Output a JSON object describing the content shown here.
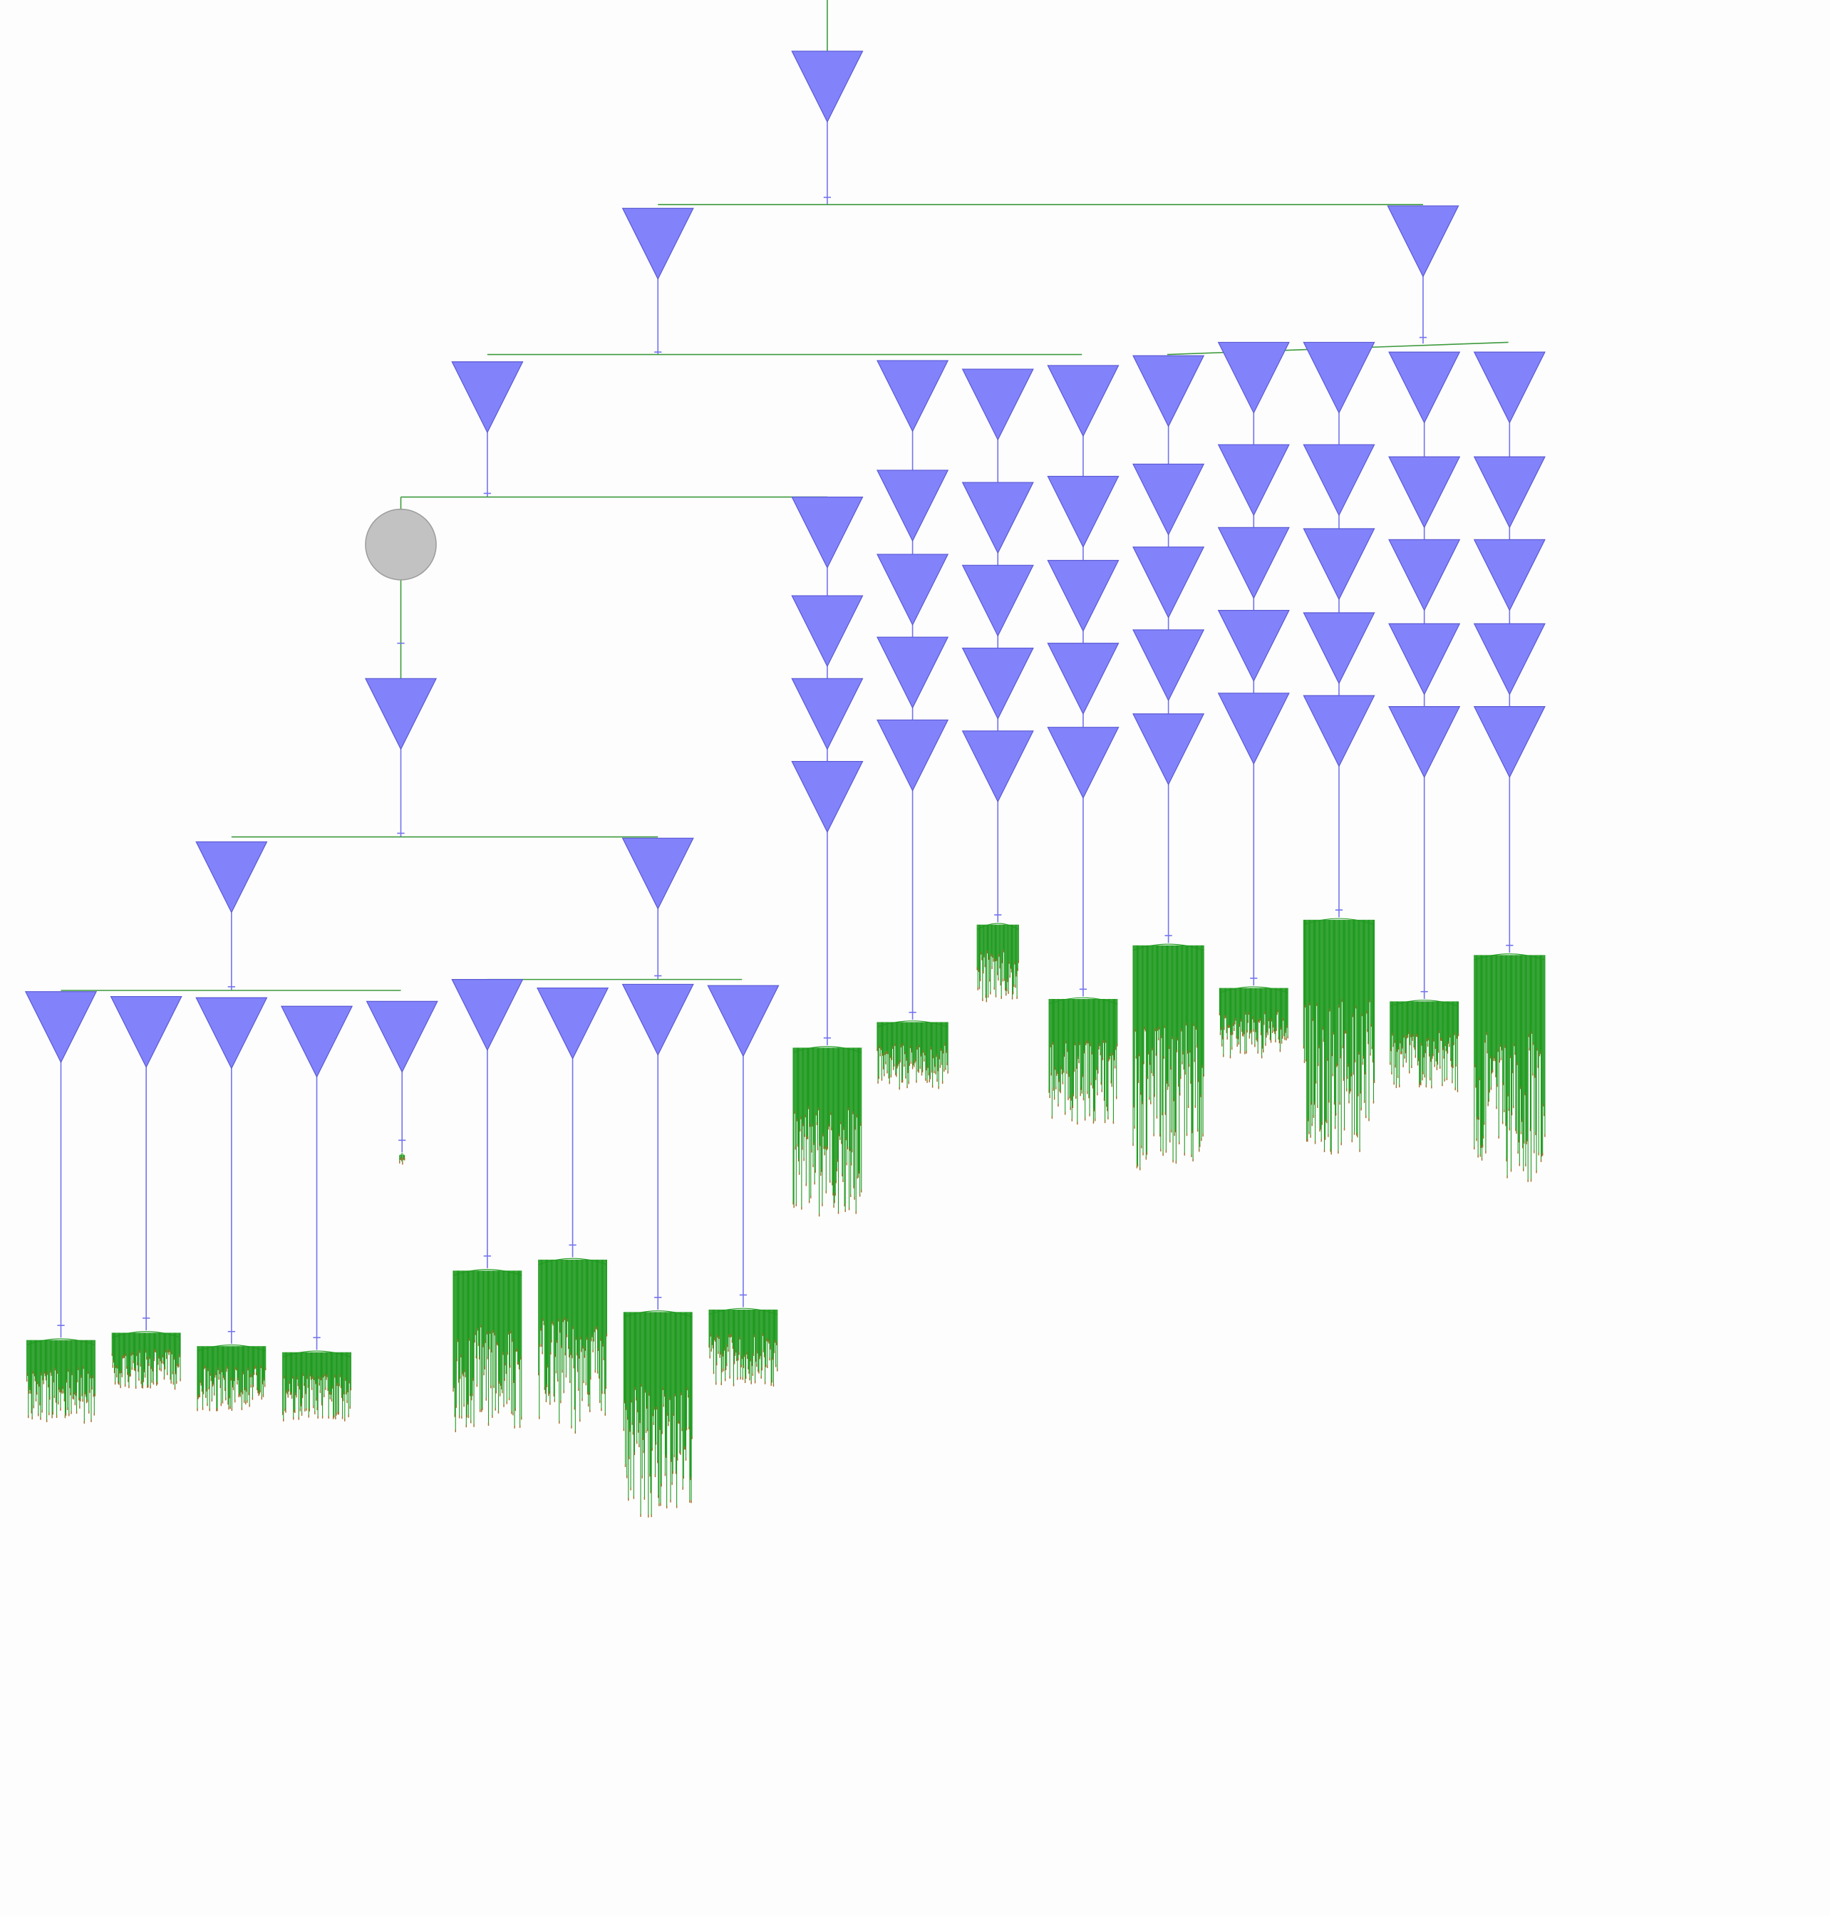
{
  "diagram": {
    "type": "phylogenetic-tree",
    "colors": {
      "background": "#fdfdfd",
      "collapsed_clade": "#8282fa",
      "collapsed_clade_stroke": "#5a5ad6",
      "root_node": "#c2c2c2",
      "branch_internal": "#3c9a3c",
      "branch_clade": "#7373f0",
      "leaf_branch": "#1f9a1f",
      "leaf_tip": "#a0712c"
    },
    "node_shapes": {
      "collapsed_clade": "triangle-down",
      "unresolved_node": "circle"
    }
  }
}
